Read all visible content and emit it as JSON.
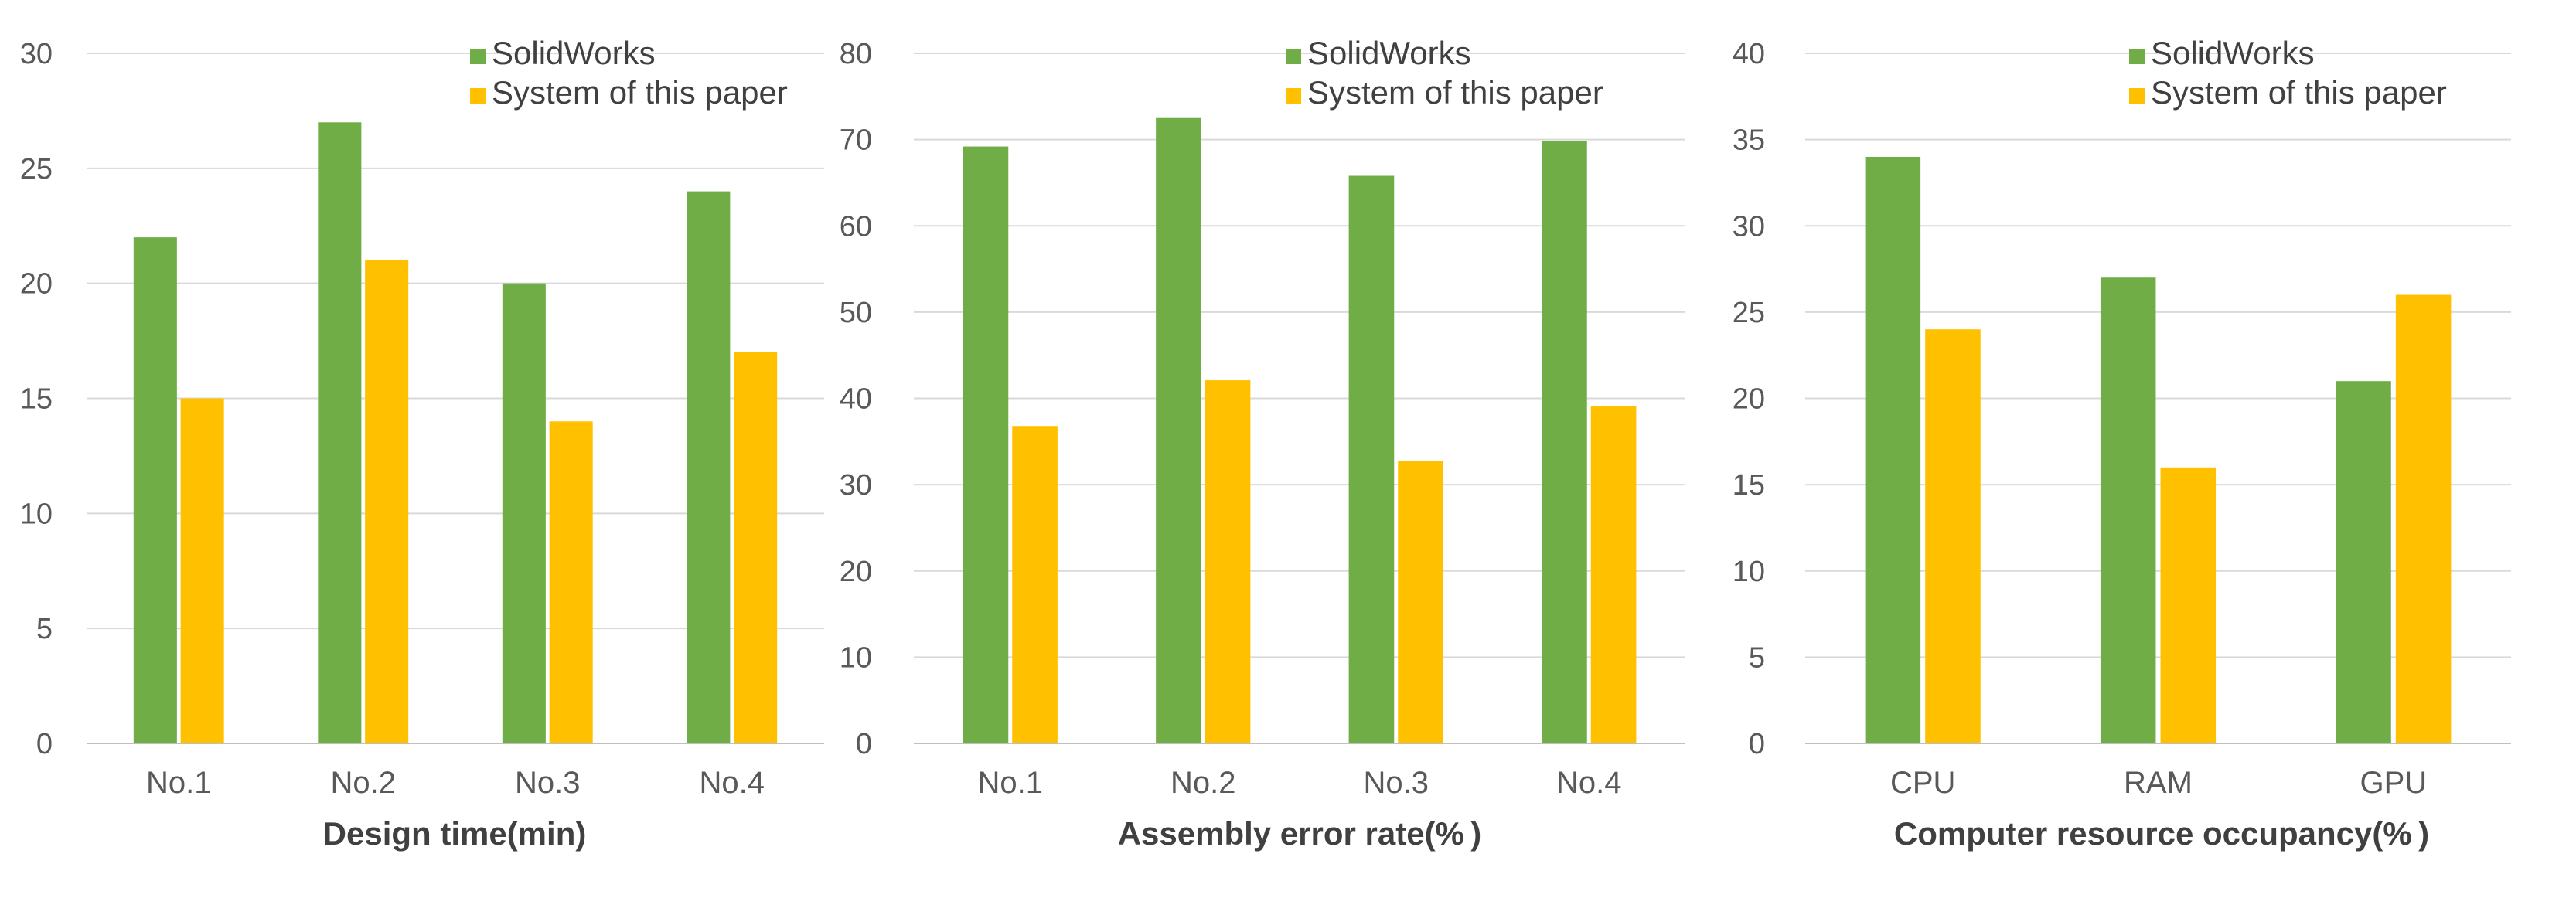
{
  "chart_data": [
    {
      "type": "bar",
      "xlabel": "Design time(min)",
      "categories": [
        "No.1",
        "No.2",
        "No.3",
        "No.4"
      ],
      "ylim": [
        0,
        30
      ],
      "yticks": [
        0,
        5,
        10,
        15,
        20,
        25,
        30
      ],
      "grid": true,
      "legend": "top-right",
      "series": [
        {
          "name": "SolidWorks",
          "color": "#70AD47",
          "values": [
            22,
            27,
            20,
            24
          ]
        },
        {
          "name": "System of this paper",
          "color": "#FFC000",
          "values": [
            15,
            21,
            14,
            17
          ]
        }
      ]
    },
    {
      "type": "bar",
      "xlabel": "Assembly error rate(% )",
      "categories": [
        "No.1",
        "No.2",
        "No.3",
        "No.4"
      ],
      "ylim": [
        0,
        80
      ],
      "yticks": [
        0,
        10,
        20,
        30,
        40,
        50,
        60,
        70,
        80
      ],
      "grid": true,
      "legend": "top-right",
      "series": [
        {
          "name": "SolidWorks",
          "color": "#70AD47",
          "values": [
            69.2,
            72.5,
            65.8,
            69.8
          ]
        },
        {
          "name": "System of this paper",
          "color": "#FFC000",
          "values": [
            36.8,
            42.1,
            32.7,
            39.1
          ]
        }
      ]
    },
    {
      "type": "bar",
      "xlabel": "Computer resource occupancy(% )",
      "categories": [
        "CPU",
        "RAM",
        "GPU"
      ],
      "ylim": [
        0,
        40
      ],
      "yticks": [
        0,
        5,
        10,
        15,
        20,
        25,
        30,
        35,
        40
      ],
      "grid": true,
      "legend": "top-right",
      "series": [
        {
          "name": "SolidWorks",
          "color": "#70AD47",
          "values": [
            34,
            27,
            21
          ]
        },
        {
          "name": "System of this paper",
          "color": "#FFC000",
          "values": [
            24,
            16,
            26
          ]
        }
      ]
    }
  ]
}
